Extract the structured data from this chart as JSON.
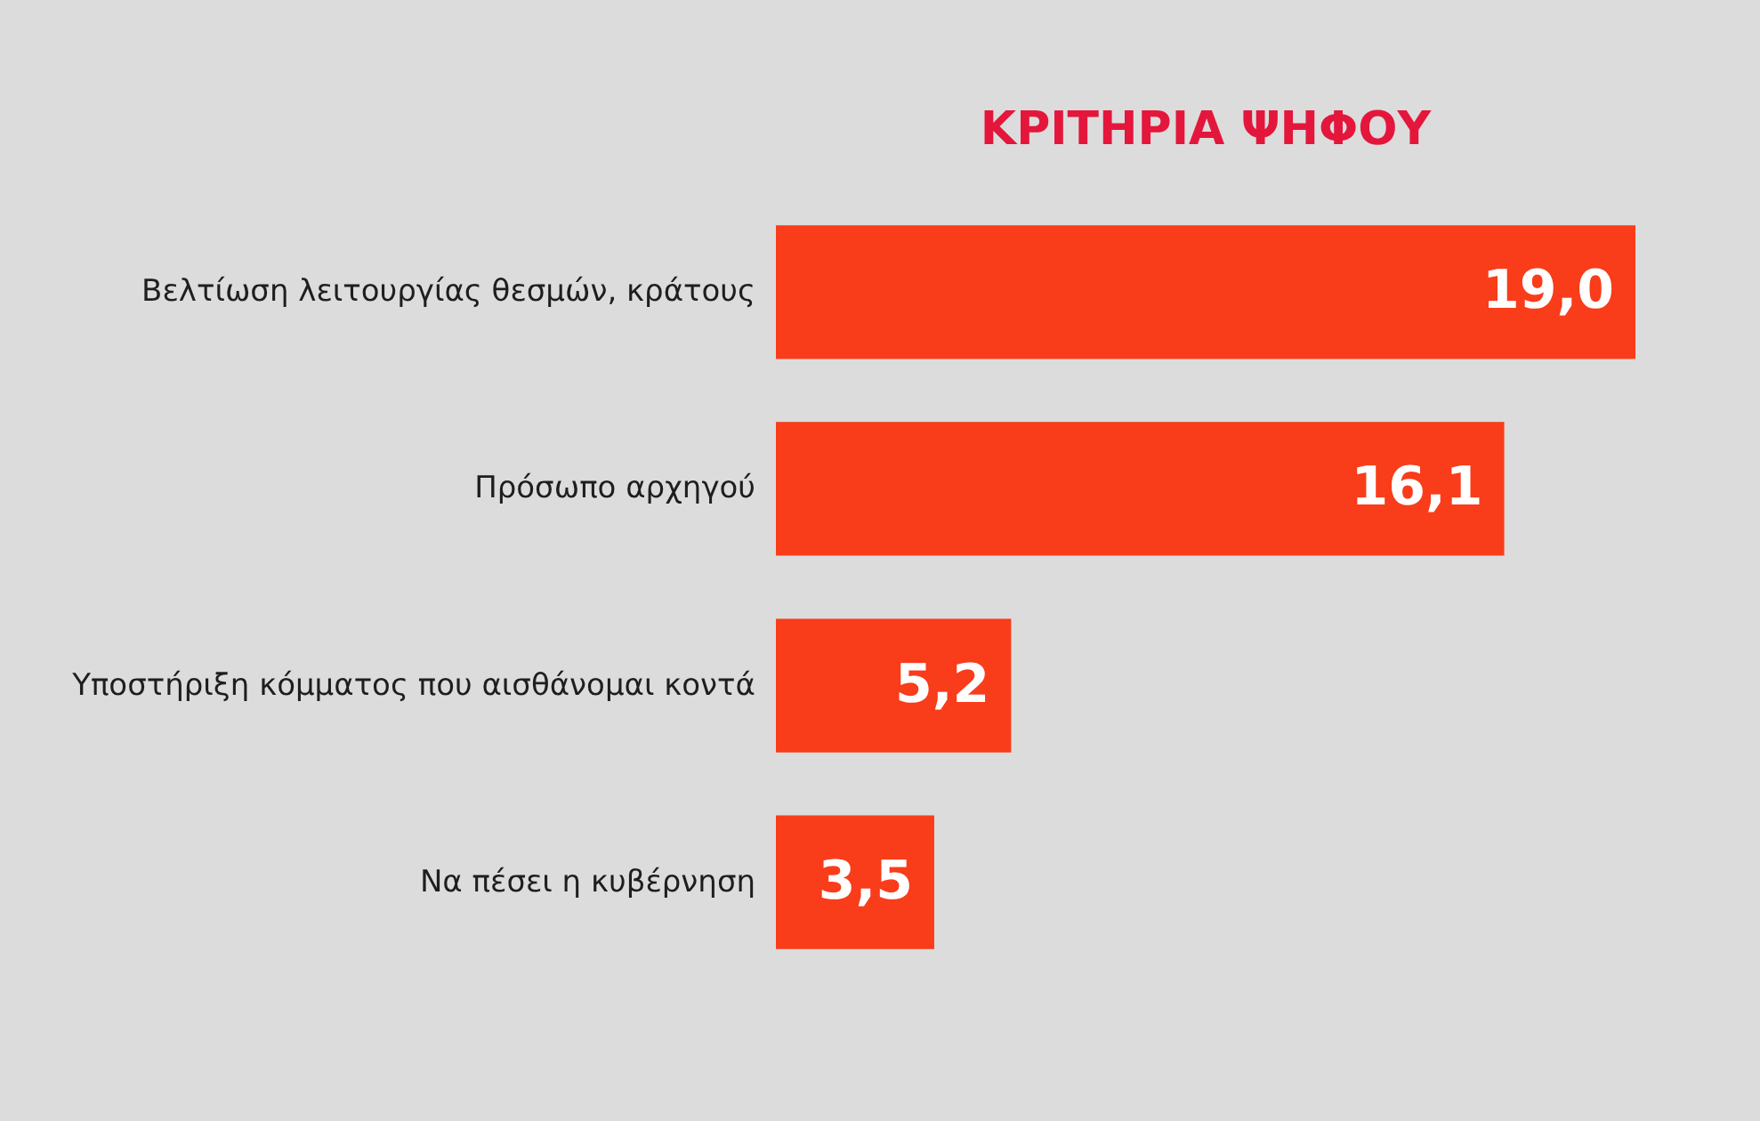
{
  "chart_data": {
    "type": "bar",
    "orientation": "horizontal",
    "title": "ΚΡΙΤΗΡΙΑ ΨΗΦΟΥ",
    "categories": [
      "Βελτίωση λειτουργίας θεσμών, κράτους",
      "Πρόσωπο αρχηγού",
      "Υποστήριξη κόμματος που αισθάνομαι κοντά",
      "Να πέσει η κυβέρνηση"
    ],
    "values": [
      19.0,
      16.1,
      5.2,
      3.5
    ],
    "value_labels": [
      "19,0",
      "16,1",
      "5,2",
      "3,5"
    ],
    "color": "#f93c1a",
    "tick_labels": "y"
  }
}
